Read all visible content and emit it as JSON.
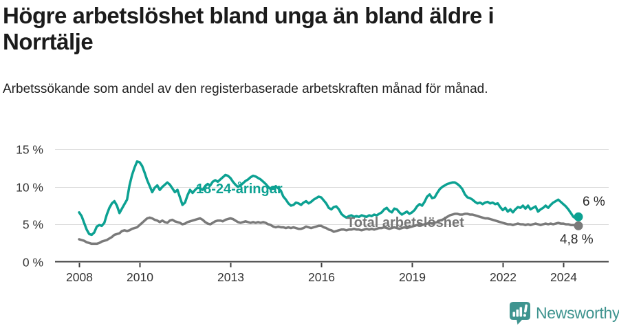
{
  "header": {
    "title": "Högre arbetslöshet bland unga än bland äldre i Norrtälje",
    "subtitle": "Arbetssökande som andel av den registerbaserade arbetskraften månad för månad."
  },
  "chart_data": {
    "type": "line",
    "unit": "%",
    "grid": true,
    "legend": "inline-labels",
    "ylim": [
      0,
      15
    ],
    "x_range": {
      "start": "2008-01",
      "end": "2024-07",
      "interval": "monthly"
    },
    "y_ticks": [
      {
        "value": 0,
        "label": "0 %"
      },
      {
        "value": 5,
        "label": "5 %"
      },
      {
        "value": 10,
        "label": "10 %"
      },
      {
        "value": 15,
        "label": "15 %"
      }
    ],
    "x_ticks": [
      {
        "year": 2008,
        "label": "2008"
      },
      {
        "year": 2010,
        "label": "2010"
      },
      {
        "year": 2013,
        "label": "2013"
      },
      {
        "year": 2016,
        "label": "2016"
      },
      {
        "year": 2019,
        "label": "2019"
      },
      {
        "year": 2022,
        "label": "2022"
      },
      {
        "year": 2024,
        "label": "2024"
      }
    ],
    "series": [
      {
        "name": "18-24-åringar",
        "color": "#0ca192",
        "end_label": "6 %",
        "end_value": 6.0,
        "values": [
          6.6,
          6.1,
          5.2,
          4.3,
          3.7,
          3.6,
          3.9,
          4.7,
          4.9,
          4.8,
          5.2,
          6.3,
          7.2,
          7.8,
          8.1,
          7.5,
          6.5,
          7.1,
          7.7,
          8.3,
          10.2,
          11.6,
          12.6,
          13.4,
          13.3,
          12.8,
          11.9,
          10.9,
          10.1,
          9.3,
          9.9,
          10.2,
          9.6,
          10.0,
          10.3,
          10.6,
          10.3,
          9.8,
          9.3,
          9.6,
          8.6,
          7.6,
          7.9,
          8.9,
          9.6,
          9.2,
          9.6,
          9.9,
          9.8,
          9.6,
          10.1,
          10.4,
          10.2,
          10.7,
          10.9,
          10.7,
          11.0,
          11.3,
          11.6,
          11.5,
          11.2,
          10.7,
          10.3,
          10.0,
          10.2,
          10.5,
          10.8,
          11.0,
          11.3,
          11.5,
          11.4,
          11.2,
          11.0,
          10.7,
          10.4,
          10.0,
          9.7,
          9.9,
          10.1,
          9.8,
          9.5,
          8.7,
          8.3,
          7.8,
          7.5,
          7.6,
          7.9,
          7.8,
          7.6,
          7.9,
          8.1,
          7.8,
          8.0,
          8.3,
          8.5,
          8.7,
          8.6,
          8.2,
          7.8,
          7.2,
          7.0,
          7.3,
          7.4,
          7.0,
          6.4,
          6.1,
          5.9,
          6.1,
          6.2,
          6.0,
          6.1,
          6.0,
          6.2,
          6.1,
          6.0,
          6.2,
          6.1,
          6.3,
          6.2,
          6.4,
          6.6,
          7.0,
          7.2,
          6.8,
          6.6,
          7.1,
          7.0,
          6.6,
          6.3,
          6.5,
          6.7,
          6.4,
          6.6,
          6.9,
          7.4,
          7.7,
          7.5,
          8.0,
          8.7,
          9.0,
          8.5,
          8.6,
          9.2,
          9.7,
          10.0,
          10.2,
          10.4,
          10.5,
          10.6,
          10.6,
          10.4,
          10.1,
          9.7,
          9.0,
          8.6,
          8.5,
          8.3,
          8.0,
          7.8,
          7.9,
          7.7,
          7.9,
          8.0,
          7.8,
          7.9,
          7.7,
          7.8,
          7.3,
          6.9,
          7.2,
          6.7,
          7.0,
          6.6,
          7.0,
          7.3,
          7.2,
          7.5,
          7.1,
          7.5,
          7.0,
          7.2,
          7.4,
          6.7,
          7.0,
          7.2,
          7.5,
          7.2,
          7.6,
          7.9,
          8.1,
          8.3,
          8.0,
          7.7,
          7.4,
          7.0,
          6.5,
          6.0,
          5.8,
          6.0
        ]
      },
      {
        "name": "Total arbetslöshet",
        "color": "#7a7a7a",
        "end_label": "4,8 %",
        "end_value": 4.8,
        "values": [
          3.0,
          2.9,
          2.8,
          2.6,
          2.5,
          2.4,
          2.4,
          2.4,
          2.5,
          2.7,
          2.8,
          2.9,
          3.1,
          3.3,
          3.6,
          3.7,
          3.8,
          4.1,
          4.2,
          4.1,
          4.2,
          4.4,
          4.5,
          4.6,
          4.9,
          5.2,
          5.5,
          5.8,
          5.9,
          5.8,
          5.6,
          5.5,
          5.3,
          5.5,
          5.3,
          5.2,
          5.5,
          5.6,
          5.4,
          5.3,
          5.2,
          5.0,
          5.1,
          5.3,
          5.4,
          5.5,
          5.6,
          5.7,
          5.8,
          5.6,
          5.3,
          5.1,
          5.0,
          5.2,
          5.4,
          5.5,
          5.5,
          5.4,
          5.6,
          5.7,
          5.8,
          5.7,
          5.5,
          5.3,
          5.2,
          5.3,
          5.4,
          5.3,
          5.2,
          5.3,
          5.2,
          5.3,
          5.2,
          5.3,
          5.2,
          5.0,
          4.9,
          4.7,
          4.6,
          4.7,
          4.6,
          4.6,
          4.5,
          4.6,
          4.5,
          4.6,
          4.5,
          4.4,
          4.4,
          4.5,
          4.7,
          4.6,
          4.5,
          4.6,
          4.7,
          4.8,
          4.8,
          4.6,
          4.5,
          4.3,
          4.2,
          4.0,
          4.1,
          4.2,
          4.3,
          4.3,
          4.2,
          4.3,
          4.3,
          4.4,
          4.3,
          4.3,
          4.2,
          4.3,
          4.4,
          4.3,
          4.4,
          4.3,
          4.4,
          4.5,
          4.5,
          4.6,
          4.5,
          4.4,
          4.5,
          4.6,
          4.5,
          4.4,
          4.5,
          4.6,
          4.5,
          4.6,
          4.7,
          4.8,
          4.9,
          5.0,
          4.9,
          5.0,
          5.1,
          5.2,
          5.1,
          5.2,
          5.3,
          5.5,
          5.6,
          5.8,
          6.0,
          6.2,
          6.3,
          6.4,
          6.4,
          6.3,
          6.3,
          6.4,
          6.4,
          6.3,
          6.3,
          6.2,
          6.1,
          6.0,
          5.9,
          5.8,
          5.8,
          5.7,
          5.6,
          5.5,
          5.4,
          5.3,
          5.2,
          5.1,
          5.0,
          5.0,
          4.9,
          5.0,
          5.1,
          5.0,
          5.0,
          4.9,
          5.0,
          4.9,
          5.0,
          5.1,
          5.0,
          4.9,
          5.0,
          5.1,
          5.0,
          5.1,
          5.0,
          5.1,
          5.2,
          5.1,
          5.1,
          5.0,
          5.0,
          4.9,
          4.9,
          4.8,
          4.8
        ]
      }
    ],
    "style": {
      "gridline_color": "#dcdcdc",
      "axis_color": "#3c3c3c",
      "tick_text_color": "#333333"
    }
  },
  "footer": {
    "brand": "Newsworthy",
    "brand_color": "#3f948f",
    "logo_icon": "bar-chart-speech-bubble-icon"
  }
}
